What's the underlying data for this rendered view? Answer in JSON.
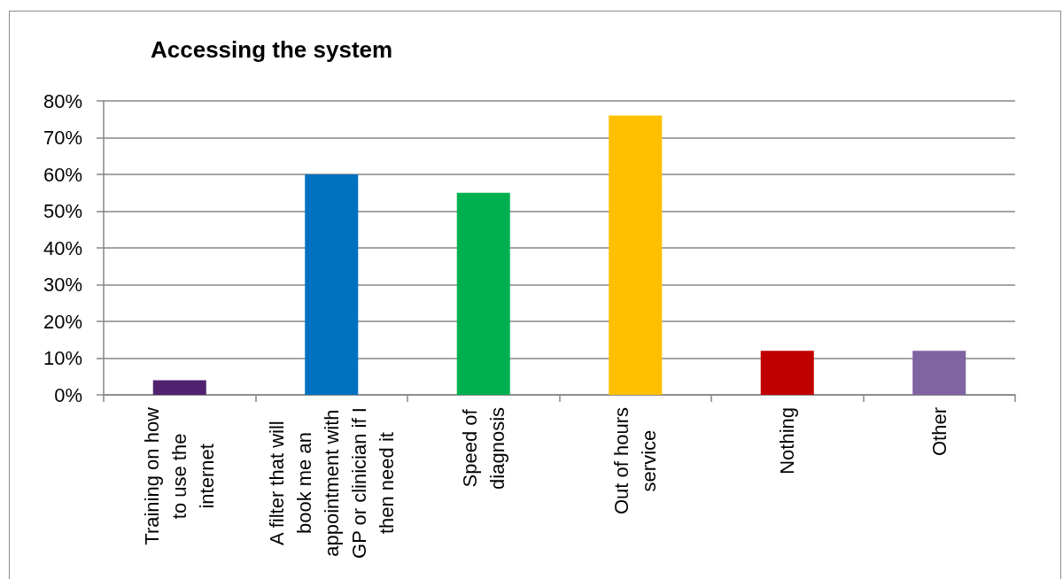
{
  "chart_data": {
    "type": "bar",
    "title": "Accessing the system",
    "categories": [
      "Training on how to use the internet",
      "A filter that will book me an appointment with GP or clinician if I then need it",
      "Speed of diagnosis",
      "Out of hours service",
      "Nothing",
      "Other"
    ],
    "values": [
      4,
      60,
      55,
      76,
      12,
      12
    ],
    "colors": [
      "#512270",
      "#0070c0",
      "#00b050",
      "#ffc000",
      "#c00000",
      "#8064a2"
    ],
    "ylim": [
      0,
      80
    ],
    "yticks": [
      {
        "value": 0,
        "label": "0%"
      },
      {
        "value": 10,
        "label": "10%"
      },
      {
        "value": 20,
        "label": "20%"
      },
      {
        "value": 30,
        "label": "30%"
      },
      {
        "value": 40,
        "label": "40%"
      },
      {
        "value": 50,
        "label": "50%"
      },
      {
        "value": 60,
        "label": "60%"
      },
      {
        "value": 70,
        "label": "70%"
      },
      {
        "value": 80,
        "label": "80%"
      }
    ],
    "grid": "y"
  }
}
